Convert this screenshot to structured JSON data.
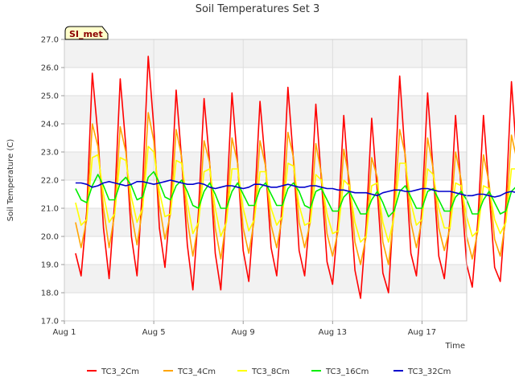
{
  "chart_data": {
    "type": "line",
    "title": "Soil Temperatures Set 3",
    "xlabel": "Time",
    "ylabel": "Soil Temperature (C)",
    "badge": "SI_met",
    "x_tick_labels": [
      "Aug 1",
      "Aug 5",
      "Aug 9",
      "Aug 13",
      "Aug 17"
    ],
    "x_tick_days": [
      1,
      5,
      9,
      13,
      17
    ],
    "xlim_days": [
      1,
      19
    ],
    "y_tick_labels": [
      "17.0",
      "18.0",
      "19.0",
      "20.0",
      "21.0",
      "22.0",
      "23.0",
      "24.0",
      "25.0",
      "26.0",
      "27.0"
    ],
    "ylim": [
      17.0,
      27.0
    ],
    "grid": true,
    "legend_position": "bottom",
    "sampling": "4 points per day starting Aug 1 12:00 (values at 00:00, 06:00, 12:00, 18:00)",
    "series": [
      {
        "name": "TC3_2Cm",
        "color": "#ff0000",
        "start_day": 1.5,
        "step_days": 0.25,
        "values": [
          19.4,
          18.6,
          20.9,
          25.8,
          23.6,
          20.3,
          18.5,
          21.2,
          25.6,
          23.2,
          20.0,
          18.6,
          21.8,
          26.4,
          23.9,
          20.3,
          18.9,
          21.2,
          25.2,
          22.7,
          19.7,
          18.1,
          20.9,
          24.9,
          22.6,
          19.4,
          18.1,
          21.1,
          25.1,
          22.6,
          19.5,
          18.4,
          21.0,
          24.8,
          22.5,
          19.6,
          18.6,
          21.2,
          25.3,
          22.7,
          19.5,
          18.6,
          20.9,
          24.7,
          22.0,
          19.1,
          18.3,
          20.6,
          24.3,
          21.6,
          18.8,
          17.8,
          20.4,
          24.2,
          21.6,
          18.7,
          18.0,
          21.3,
          25.7,
          22.8,
          19.4,
          18.6,
          21.0,
          25.1,
          22.3,
          19.3,
          18.5,
          20.6,
          24.3,
          21.7,
          19.0,
          18.2,
          20.6,
          24.3,
          21.6,
          18.9,
          18.4,
          21.1,
          25.5,
          22.7,
          19.4,
          18.3,
          20.7,
          24.2,
          21.6,
          19.2
        ]
      },
      {
        "name": "TC3_4Cm",
        "color": "#ffa500",
        "start_day": 1.5,
        "step_days": 0.25,
        "values": [
          20.5,
          19.6,
          20.6,
          24.0,
          23.2,
          21.0,
          19.6,
          20.8,
          23.9,
          23.0,
          20.8,
          19.7,
          21.0,
          24.4,
          23.4,
          21.1,
          19.9,
          20.8,
          23.8,
          22.8,
          20.6,
          19.3,
          20.5,
          23.4,
          22.6,
          20.3,
          19.2,
          20.6,
          23.5,
          22.6,
          20.3,
          19.4,
          20.6,
          23.4,
          22.5,
          20.4,
          19.6,
          20.7,
          23.7,
          22.8,
          20.5,
          19.6,
          20.5,
          23.3,
          22.2,
          20.1,
          19.3,
          20.2,
          23.1,
          22.0,
          19.8,
          19.0,
          20.0,
          22.8,
          22.1,
          19.8,
          19.0,
          20.8,
          23.8,
          22.9,
          20.5,
          19.6,
          20.6,
          23.5,
          22.4,
          20.3,
          19.5,
          20.3,
          23.0,
          22.0,
          20.0,
          19.2,
          20.2,
          22.9,
          21.9,
          19.9,
          19.3,
          20.6,
          23.6,
          22.7,
          20.4,
          19.3,
          20.3,
          22.9,
          22.0,
          20.0
        ]
      },
      {
        "name": "TC3_8Cm",
        "color": "#ffff00",
        "start_day": 1.5,
        "step_days": 0.25,
        "values": [
          21.2,
          20.4,
          20.6,
          22.8,
          22.9,
          21.5,
          20.5,
          20.8,
          22.8,
          22.7,
          21.4,
          20.5,
          21.0,
          23.2,
          23.0,
          21.6,
          20.7,
          20.8,
          22.7,
          22.6,
          21.2,
          20.1,
          20.5,
          22.3,
          22.4,
          21.0,
          20.0,
          20.5,
          22.4,
          22.4,
          21.0,
          20.2,
          20.6,
          22.3,
          22.3,
          21.0,
          20.4,
          20.7,
          22.6,
          22.5,
          21.1,
          20.4,
          20.5,
          22.2,
          22.0,
          20.8,
          20.1,
          20.2,
          22.0,
          21.8,
          20.5,
          19.8,
          20.0,
          21.8,
          21.9,
          20.5,
          19.8,
          20.7,
          22.6,
          22.6,
          21.2,
          20.4,
          20.6,
          22.4,
          22.2,
          21.0,
          20.3,
          20.3,
          21.9,
          21.8,
          20.7,
          20.0,
          20.2,
          21.8,
          21.7,
          20.6,
          20.1,
          20.5,
          22.4,
          22.4,
          21.1,
          20.2,
          20.3,
          21.8,
          21.8,
          20.7
        ]
      },
      {
        "name": "TC3_16Cm",
        "color": "#00ee00",
        "start_day": 1.5,
        "step_days": 0.25,
        "values": [
          21.7,
          21.3,
          21.2,
          21.8,
          22.2,
          21.8,
          21.3,
          21.3,
          21.9,
          22.1,
          21.8,
          21.3,
          21.4,
          22.1,
          22.3,
          21.9,
          21.4,
          21.3,
          21.8,
          22.0,
          21.6,
          21.1,
          21.0,
          21.6,
          21.9,
          21.5,
          21.0,
          21.0,
          21.6,
          21.9,
          21.5,
          21.1,
          21.1,
          21.7,
          21.9,
          21.5,
          21.1,
          21.1,
          21.7,
          21.9,
          21.6,
          21.1,
          21.0,
          21.6,
          21.7,
          21.3,
          20.9,
          20.9,
          21.4,
          21.6,
          21.2,
          20.8,
          20.8,
          21.3,
          21.6,
          21.2,
          20.7,
          20.9,
          21.6,
          21.8,
          21.4,
          21.0,
          21.0,
          21.6,
          21.7,
          21.3,
          20.9,
          20.9,
          21.4,
          21.6,
          21.3,
          20.8,
          20.8,
          21.3,
          21.6,
          21.2,
          20.8,
          20.9,
          21.6,
          21.8,
          21.4,
          20.9,
          20.9,
          21.4,
          21.7,
          21.3
        ]
      },
      {
        "name": "TC3_32Cm",
        "color": "#0000cc",
        "start_day": 1.5,
        "step_days": 0.25,
        "values": [
          21.9,
          21.9,
          21.85,
          21.75,
          21.8,
          21.9,
          21.95,
          21.9,
          21.85,
          21.8,
          21.85,
          21.95,
          21.95,
          21.9,
          21.85,
          21.9,
          21.95,
          22.0,
          21.95,
          21.9,
          21.85,
          21.85,
          21.9,
          21.85,
          21.75,
          21.7,
          21.75,
          21.8,
          21.8,
          21.75,
          21.7,
          21.75,
          21.85,
          21.85,
          21.8,
          21.75,
          21.75,
          21.8,
          21.85,
          21.8,
          21.75,
          21.75,
          21.8,
          21.8,
          21.75,
          21.7,
          21.7,
          21.65,
          21.65,
          21.6,
          21.55,
          21.55,
          21.55,
          21.5,
          21.45,
          21.55,
          21.6,
          21.65,
          21.65,
          21.6,
          21.6,
          21.65,
          21.7,
          21.7,
          21.65,
          21.6,
          21.6,
          21.6,
          21.55,
          21.5,
          21.45,
          21.45,
          21.5,
          21.5,
          21.45,
          21.4,
          21.45,
          21.55,
          21.6,
          21.55,
          21.5,
          21.5,
          21.55,
          21.55,
          21.5,
          21.55
        ]
      }
    ]
  }
}
